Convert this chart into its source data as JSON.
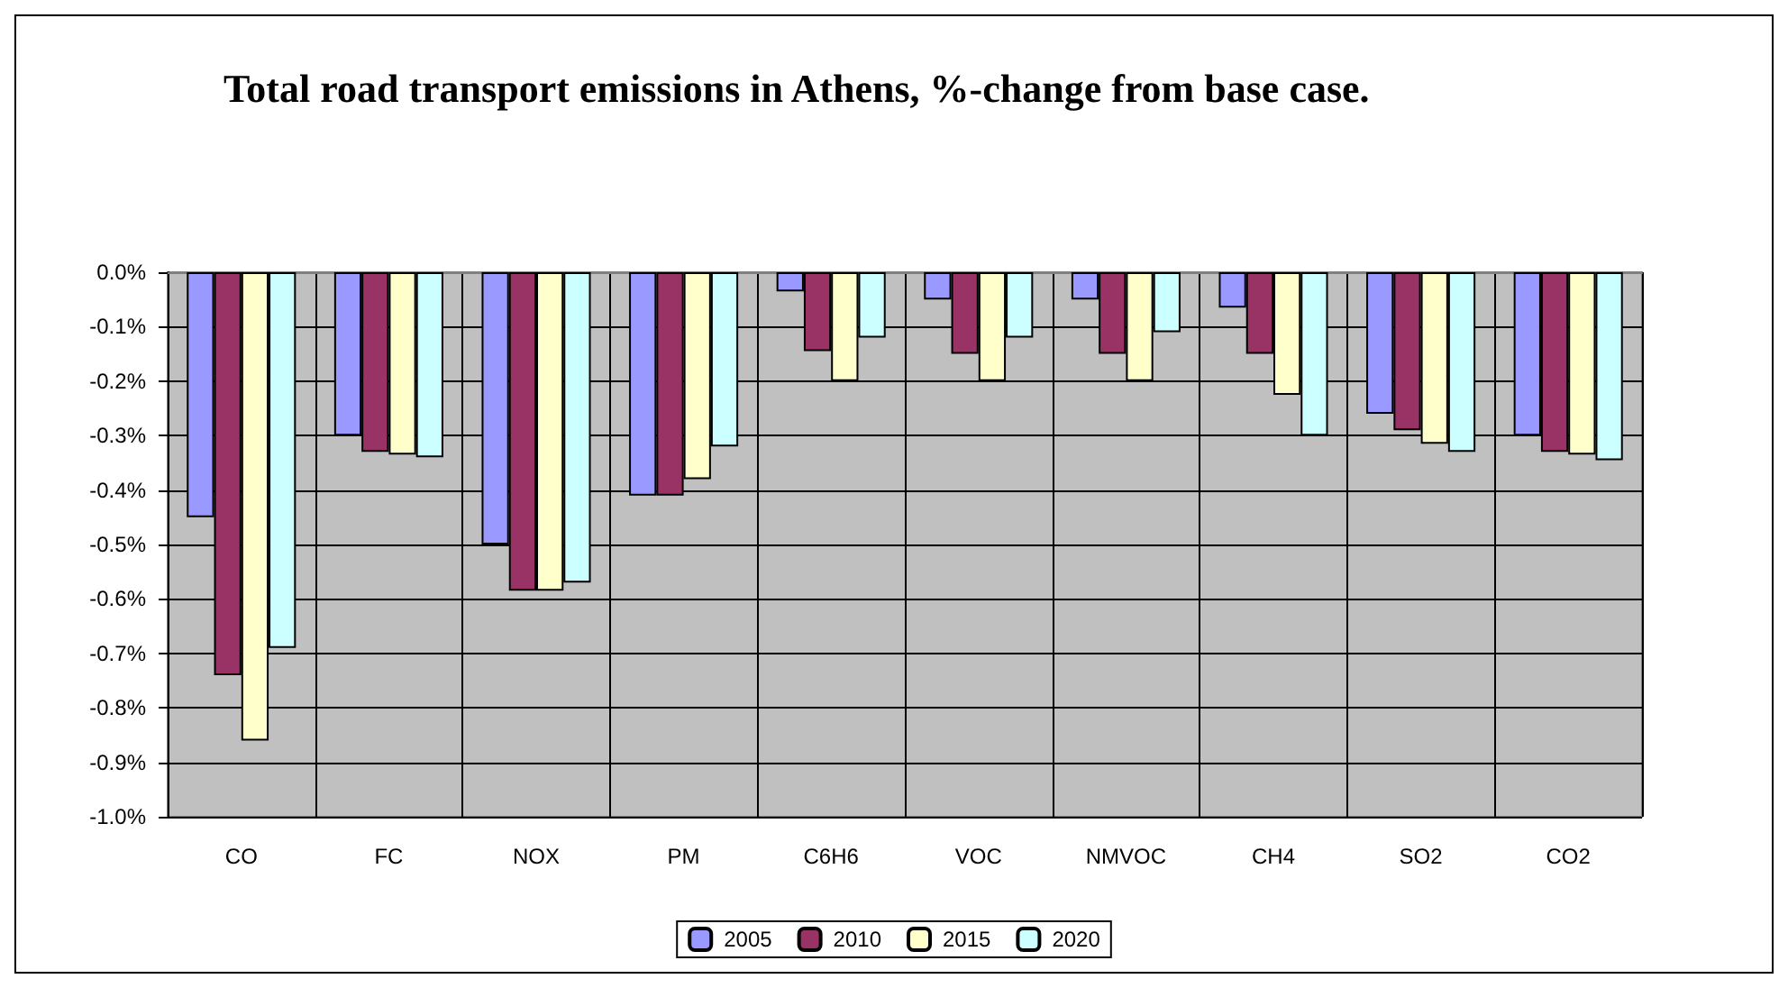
{
  "chart_data": {
    "type": "bar",
    "title": "Total road transport emissions in Athens, %-change from base case.",
    "categories": [
      "CO",
      "FC",
      "NOX",
      "PM",
      "C6H6",
      "VOC",
      "NMVOC",
      "CH4",
      "SO2",
      "CO2"
    ],
    "series": [
      {
        "name": "2005",
        "color": "#9999ff",
        "values": [
          -0.45,
          -0.3,
          -0.5,
          -0.41,
          -0.035,
          -0.05,
          -0.05,
          -0.065,
          -0.26,
          -0.3
        ]
      },
      {
        "name": "2010",
        "color": "#993366",
        "values": [
          -0.74,
          -0.33,
          -0.585,
          -0.41,
          -0.145,
          -0.15,
          -0.15,
          -0.15,
          -0.29,
          -0.33
        ]
      },
      {
        "name": "2015",
        "color": "#ffffcc",
        "values": [
          -0.86,
          -0.335,
          -0.585,
          -0.38,
          -0.2,
          -0.2,
          -0.2,
          -0.225,
          -0.315,
          -0.335
        ]
      },
      {
        "name": "2020",
        "color": "#ccffff",
        "values": [
          -0.69,
          -0.34,
          -0.57,
          -0.32,
          -0.12,
          -0.12,
          -0.11,
          -0.3,
          -0.33,
          -0.345
        ]
      }
    ],
    "ylim": [
      -1.0,
      0.0
    ],
    "yticks": [
      {
        "value": 0,
        "label": "0.0%"
      },
      {
        "value": -0.1,
        "label": "-0.1%"
      },
      {
        "value": -0.2,
        "label": "-0.2%"
      },
      {
        "value": -0.3,
        "label": "-0.3%"
      },
      {
        "value": -0.4,
        "label": "-0.4%"
      },
      {
        "value": -0.5,
        "label": "-0.5%"
      },
      {
        "value": -0.6,
        "label": "-0.6%"
      },
      {
        "value": -0.7,
        "label": "-0.7%"
      },
      {
        "value": -0.8,
        "label": "-0.8%"
      },
      {
        "value": -0.9,
        "label": "-0.9%"
      },
      {
        "value": -1.0,
        "label": "-1.0%"
      }
    ],
    "grid": true,
    "legend": "bottom"
  }
}
